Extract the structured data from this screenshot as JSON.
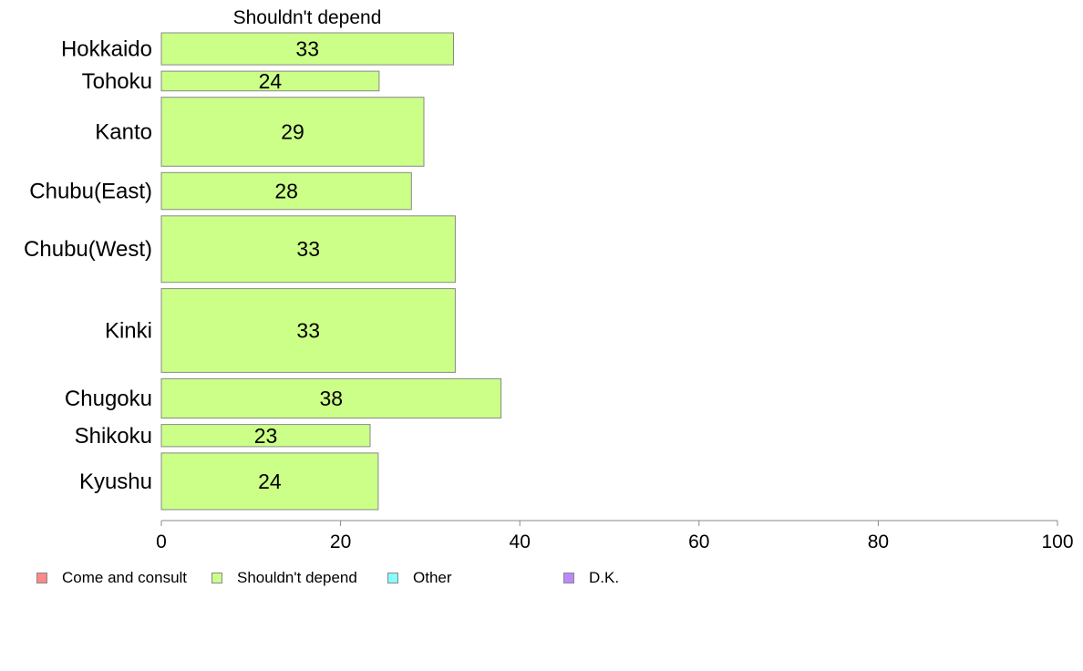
{
  "chart_data": {
    "type": "bar",
    "orientation": "horizontal",
    "title": "Shouldn't depend",
    "categories": [
      "Hokkaido",
      "Tohoku",
      "Kanto",
      "Chubu(East)",
      "Chubu(West)",
      "Kinki",
      "Chugoku",
      "Shikoku",
      "Kyushu"
    ],
    "values": [
      33,
      24,
      29,
      28,
      33,
      33,
      38,
      23,
      24
    ],
    "exact_values": [
      32.6,
      24.3,
      29.3,
      27.9,
      32.8,
      32.8,
      37.9,
      23.3,
      24.2
    ],
    "relative_bar_widths": [
      1.3,
      0.8,
      2.8,
      1.5,
      2.7,
      3.4,
      1.6,
      0.9,
      2.3
    ],
    "xlim": [
      0,
      100
    ],
    "xticks": [
      0,
      20,
      40,
      60,
      80,
      100
    ],
    "bar_color": "#ccff88",
    "bar_edge_color": "#888888",
    "grid": false,
    "legend_position": "bottom",
    "legend": [
      {
        "label": "Come and consult",
        "color": "#ff8888"
      },
      {
        "label": "Shouldn't depend",
        "color": "#ccff88"
      },
      {
        "label": "Other",
        "color": "#88ffff"
      },
      {
        "label": "D.K.",
        "color": "#bb88ff"
      }
    ]
  }
}
